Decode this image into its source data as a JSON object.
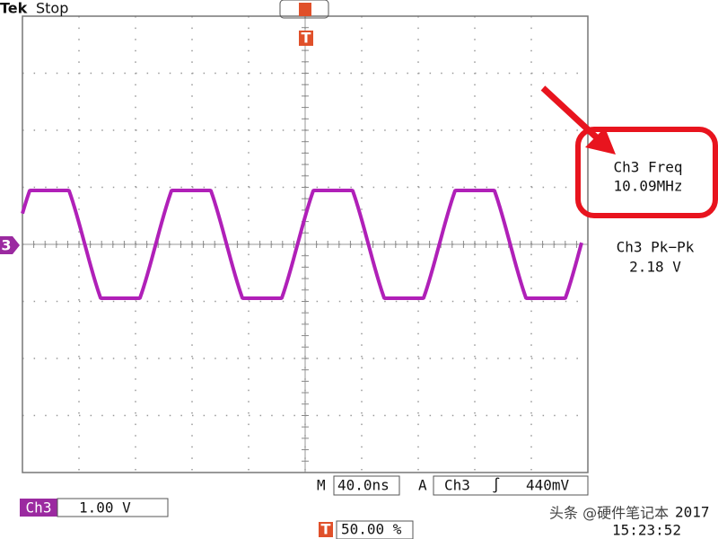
{
  "header": {
    "brand": "Tek",
    "status": "Stop"
  },
  "channel_marker": "3",
  "trigger_marker": "T",
  "measurements": [
    {
      "label": "Ch3 Freq",
      "value": "10.09MHz"
    },
    {
      "label": "Ch3 Pk−Pk",
      "value": "2.18 V"
    }
  ],
  "footer": {
    "channel": "Ch3",
    "scale": "1.00 V",
    "timebase_label": "M",
    "timebase": "40.0ns",
    "trigger_label": "A",
    "trigger_source": "Ch3",
    "trigger_slope": "∫",
    "trigger_level": "440mV",
    "trigger_marker": "T",
    "trigger_position": "50.00 %",
    "year": "2017",
    "time": "15:23:52"
  },
  "watermark": "头条 @硬件笔记本"
}
